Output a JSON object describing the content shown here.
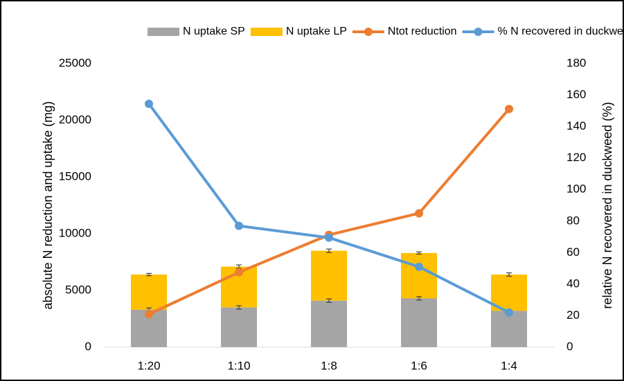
{
  "chart_data": {
    "type": "combo",
    "categories": [
      "1:20",
      "1:10",
      "1:8",
      "1:6",
      "1:4"
    ],
    "y_label": "absolute N reduction and uptake (mg)",
    "y2_label": "relative N recovered in duckweed (%)",
    "ylim": [
      0,
      25000
    ],
    "yticks": [
      0,
      5000,
      10000,
      15000,
      20000,
      25000
    ],
    "y2lim": [
      0,
      180
    ],
    "y2ticks": [
      0,
      20,
      40,
      60,
      80,
      100,
      120,
      140,
      160,
      180
    ],
    "stacked": true,
    "grid": false,
    "legend": "top",
    "series": [
      {
        "name": "N uptake SP",
        "kind": "bar",
        "color": "#a5a5a5",
        "values": [
          3300,
          3500,
          4100,
          4300,
          3200
        ],
        "errors": [
          150,
          150,
          150,
          150,
          100
        ]
      },
      {
        "name": "N uptake LP",
        "kind": "bar",
        "color": "#ffc000",
        "values": [
          3100,
          3600,
          4400,
          4000,
          3200
        ],
        "errors": [
          100,
          150,
          150,
          100,
          150
        ]
      },
      {
        "name": "Ntot reduction",
        "kind": "line",
        "color": "#ed7d31",
        "values": [
          2900,
          6600,
          9900,
          11800,
          21000
        ]
      },
      {
        "name": "% N recovered in duckweed",
        "kind": "line",
        "axis": "y2",
        "color": "#5b9bd5",
        "values": [
          154.5,
          77,
          69.5,
          51,
          22
        ]
      }
    ]
  }
}
